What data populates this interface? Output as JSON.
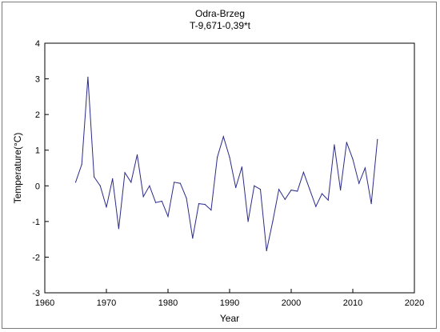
{
  "chart_data": {
    "type": "line",
    "title": "Odra-Brzeg",
    "subtitle": "T-9,671-0,39*t",
    "xlabel": "Year",
    "ylabel": "Temperature(°C)",
    "xlim": [
      1960,
      2020
    ],
    "ylim": [
      -3,
      4
    ],
    "xticks": [
      1960,
      1970,
      1980,
      1990,
      2000,
      2010,
      2020
    ],
    "yticks": [
      -3,
      -2,
      -1,
      0,
      1,
      2,
      3,
      4
    ],
    "grid": false,
    "line_color": "#2b2b8a",
    "x": [
      1965,
      1966,
      1967,
      1968,
      1969,
      1970,
      1971,
      1972,
      1973,
      1974,
      1975,
      1976,
      1977,
      1978,
      1979,
      1980,
      1981,
      1982,
      1983,
      1984,
      1985,
      1986,
      1987,
      1988,
      1989,
      1990,
      1991,
      1992,
      1993,
      1994,
      1995,
      1996,
      1997,
      1998,
      1999,
      2000,
      2001,
      2002,
      2003,
      2004,
      2005,
      2006,
      2007,
      2008,
      2009,
      2010,
      2011,
      2012,
      2013,
      2014
    ],
    "y": [
      0.1,
      0.6,
      3.05,
      0.25,
      0.0,
      -0.6,
      0.2,
      -1.2,
      0.37,
      0.1,
      0.87,
      -0.3,
      0.0,
      -0.47,
      -0.43,
      -0.86,
      0.1,
      0.07,
      -0.35,
      -1.47,
      -0.5,
      -0.52,
      -0.68,
      0.8,
      1.38,
      0.8,
      -0.05,
      0.53,
      -1.0,
      0.0,
      -0.1,
      -1.82,
      -1.0,
      -0.1,
      -0.38,
      -0.12,
      -0.15,
      0.38,
      -0.1,
      -0.58,
      -0.22,
      -0.4,
      1.15,
      -0.12,
      1.22,
      0.75,
      0.07,
      0.5,
      -0.5,
      1.3
    ]
  }
}
